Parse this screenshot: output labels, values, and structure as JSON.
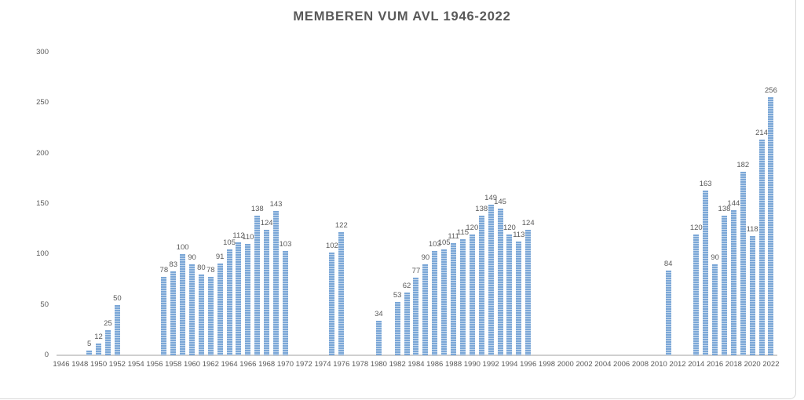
{
  "chart_data": {
    "type": "bar",
    "title": "MEMBEREN VUM AVL 1946-2022",
    "xlabel": "",
    "ylabel": "",
    "ylim": [
      0,
      300
    ],
    "y_ticks": [
      0,
      50,
      100,
      150,
      200,
      250,
      300
    ],
    "x_ticks": [
      1946,
      1948,
      1950,
      1952,
      1954,
      1956,
      1958,
      1960,
      1962,
      1964,
      1966,
      1968,
      1970,
      1972,
      1974,
      1976,
      1978,
      1980,
      1982,
      1984,
      1986,
      1988,
      1990,
      1992,
      1994,
      1996,
      1998,
      2000,
      2002,
      2004,
      2006,
      2008,
      2010,
      2012,
      2014,
      2016,
      2018,
      2020,
      2022
    ],
    "x_range": [
      1946,
      2022
    ],
    "grid": false,
    "legend": false,
    "data_labels": true,
    "bar_color": "#7ba7d7",
    "bar_pattern_light": "#c3d7ec",
    "axis_color": "#cfcfcf",
    "text_color": "#595959",
    "points": [
      {
        "year": 1949,
        "value": 5
      },
      {
        "year": 1950,
        "value": 12
      },
      {
        "year": 1951,
        "value": 25
      },
      {
        "year": 1952,
        "value": 50
      },
      {
        "year": 1957,
        "value": 78
      },
      {
        "year": 1958,
        "value": 83
      },
      {
        "year": 1959,
        "value": 100
      },
      {
        "year": 1960,
        "value": 90
      },
      {
        "year": 1961,
        "value": 80
      },
      {
        "year": 1962,
        "value": 78
      },
      {
        "year": 1963,
        "value": 91
      },
      {
        "year": 1964,
        "value": 105
      },
      {
        "year": 1965,
        "value": 112
      },
      {
        "year": 1966,
        "value": 110
      },
      {
        "year": 1967,
        "value": 138
      },
      {
        "year": 1968,
        "value": 124
      },
      {
        "year": 1969,
        "value": 143
      },
      {
        "year": 1970,
        "value": 103
      },
      {
        "year": 1975,
        "value": 102
      },
      {
        "year": 1976,
        "value": 122
      },
      {
        "year": 1980,
        "value": 34
      },
      {
        "year": 1982,
        "value": 53
      },
      {
        "year": 1983,
        "value": 62
      },
      {
        "year": 1984,
        "value": 77
      },
      {
        "year": 1985,
        "value": 90
      },
      {
        "year": 1986,
        "value": 103
      },
      {
        "year": 1987,
        "value": 105
      },
      {
        "year": 1988,
        "value": 111
      },
      {
        "year": 1989,
        "value": 115
      },
      {
        "year": 1990,
        "value": 120
      },
      {
        "year": 1991,
        "value": 138
      },
      {
        "year": 1992,
        "value": 149
      },
      {
        "year": 1993,
        "value": 145
      },
      {
        "year": 1994,
        "value": 120
      },
      {
        "year": 1995,
        "value": 113
      },
      {
        "year": 1996,
        "value": 124
      },
      {
        "year": 2011,
        "value": 84
      },
      {
        "year": 2014,
        "value": 120
      },
      {
        "year": 2015,
        "value": 163
      },
      {
        "year": 2016,
        "value": 90
      },
      {
        "year": 2017,
        "value": 138
      },
      {
        "year": 2018,
        "value": 144
      },
      {
        "year": 2019,
        "value": 182
      },
      {
        "year": 2020,
        "value": 118
      },
      {
        "year": 2021,
        "value": 214
      },
      {
        "year": 2022,
        "value": 256
      }
    ]
  }
}
